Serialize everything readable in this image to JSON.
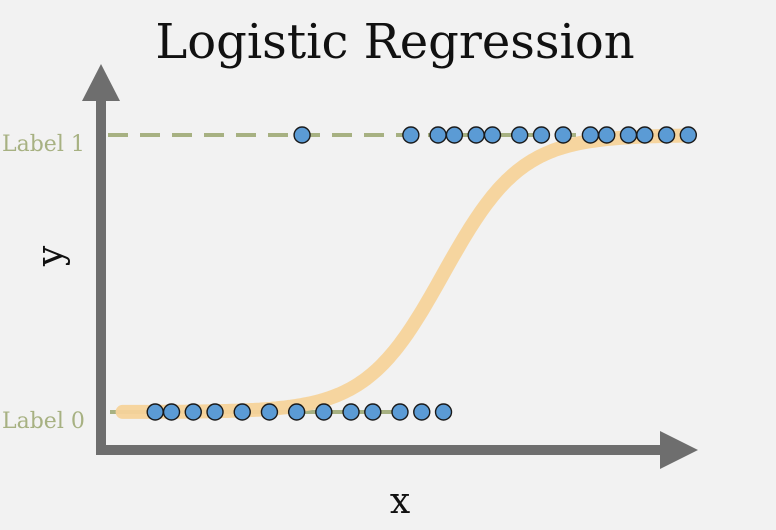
{
  "title": "Logistic Regression",
  "xlabel": "x",
  "ylabel": "y",
  "levels": {
    "label1": "Label 1",
    "label0": "Label 0"
  },
  "colors": {
    "background": "#f2f2f2",
    "axis": "#6e6e6e",
    "level_line": "#a7b182",
    "level_text": "#a7b182",
    "sigmoid": "#f5d39a",
    "point_fill": "#5b9bd5",
    "point_stroke": "#1a1a1a"
  },
  "chart_data": {
    "type": "scatter",
    "title": "Logistic Regression",
    "xlabel": "x",
    "ylabel": "y",
    "grid": false,
    "xlim": [
      0,
      100
    ],
    "ylim": [
      0,
      1
    ],
    "y_tick_labels": [
      "Label 0",
      "Label 1"
    ],
    "points_label_0": [
      5,
      8,
      12,
      16,
      21,
      26,
      31,
      36,
      41,
      45,
      50,
      54,
      58
    ],
    "points_label_1": [
      32,
      52,
      57,
      60,
      64,
      67,
      72,
      76,
      80,
      85,
      88,
      92,
      95,
      99,
      103
    ],
    "sigmoid_midpoint": 58,
    "sigmoid_steepness": 0.14
  }
}
